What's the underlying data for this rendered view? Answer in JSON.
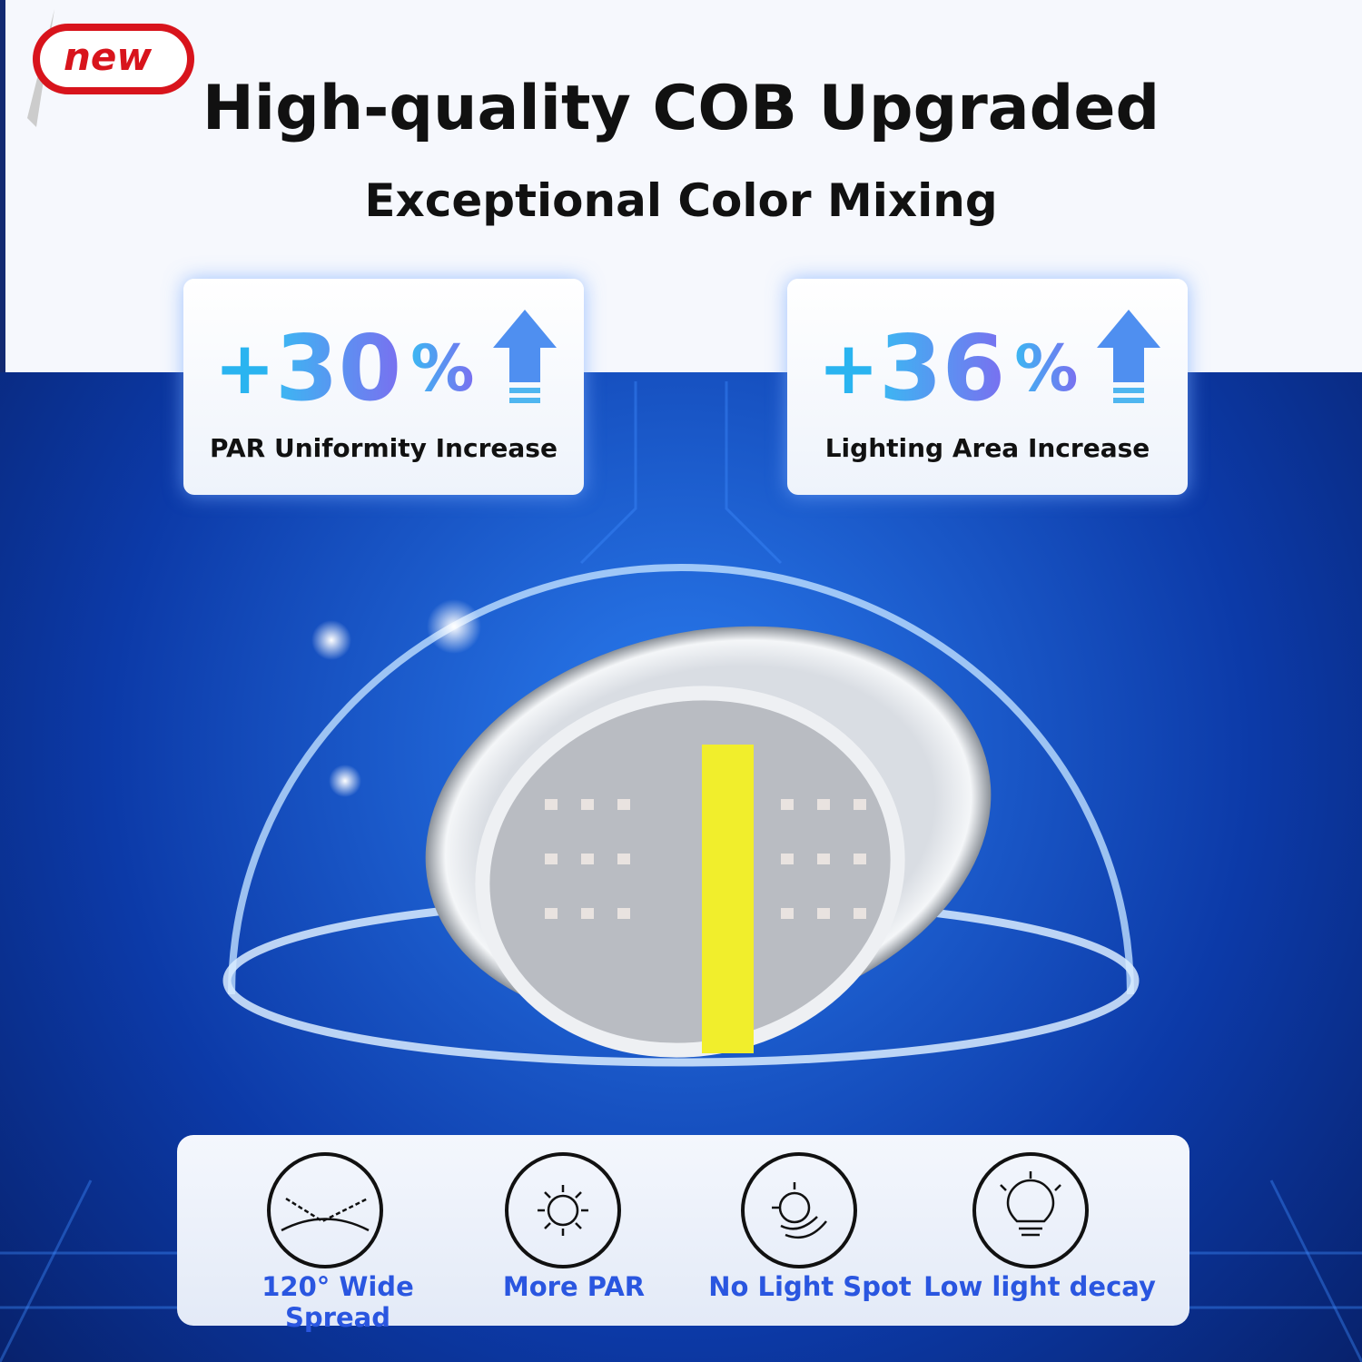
{
  "badge": "new",
  "header": {
    "title": "High-quality COB Upgraded",
    "subtitle": "Exceptional Color Mixing"
  },
  "stats": [
    {
      "sign": "+",
      "number": "30",
      "unit": "%",
      "label": "PAR Uniformity Increase"
    },
    {
      "sign": "+",
      "number": "36",
      "unit": "%",
      "label": "Lighting Area Increase"
    }
  ],
  "features": [
    "120° Wide Spread",
    "More PAR",
    "No Light Spot",
    "Low light decay"
  ]
}
